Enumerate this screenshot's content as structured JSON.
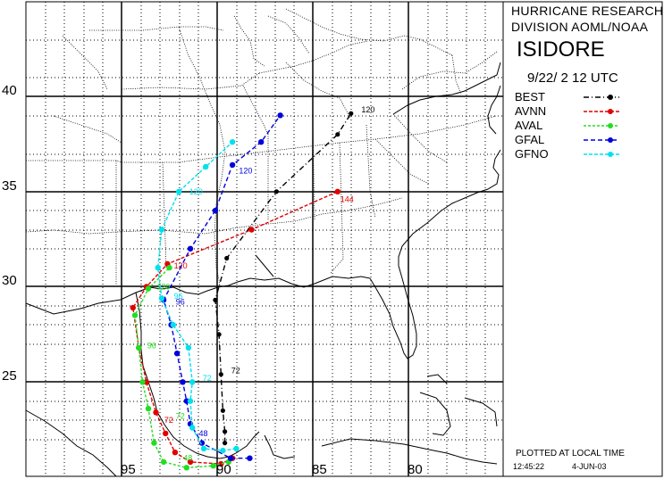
{
  "header": {
    "org_line1": "HURRICANE RESEARCH",
    "org_line2": "DIVISION AOML/NOAA",
    "storm_name": "ISIDORE",
    "datetime": "9/22/ 2 12   UTC"
  },
  "footer": {
    "note": "PLOTTED AT LOCAL TIME",
    "time": "12:45:22",
    "date": "4-JUN-03"
  },
  "axes": {
    "lat_labels": [
      "40",
      "35",
      "30",
      "25"
    ],
    "lon_labels": [
      "95",
      "90",
      "85",
      "80"
    ]
  },
  "legend": [
    {
      "name": "BEST",
      "color": "#000000"
    },
    {
      "name": "AVNN",
      "color": "#e00000"
    },
    {
      "name": "AVAL",
      "color": "#22dd22"
    },
    {
      "name": "GFAL",
      "color": "#0000dd"
    },
    {
      "name": "GFNO",
      "color": "#00e0ee"
    }
  ],
  "tracks": {
    "BEST": {
      "color": "#000000",
      "points": [
        [
          -89.6,
          21.8
        ],
        [
          -89.6,
          22.4
        ],
        [
          -89.7,
          23.5
        ],
        [
          -89.8,
          25.4
        ],
        [
          -89.9,
          27.5
        ],
        [
          -90.1,
          29.3
        ],
        [
          -89.5,
          31.5
        ],
        [
          -86.9,
          35.0
        ],
        [
          -83.7,
          38.0
        ],
        [
          -83.0,
          39.1
        ]
      ],
      "labels": [
        {
          "text": "72",
          "lon": -89.4,
          "lat": 25.6
        },
        {
          "text": "120",
          "lon": -82.6,
          "lat": 39.3
        }
      ]
    },
    "AVNN": {
      "color": "#e00000",
      "points": [
        [
          -89.2,
          21.0
        ],
        [
          -89.8,
          20.7
        ],
        [
          -91.4,
          20.8
        ],
        [
          -92.2,
          21.3
        ],
        [
          -92.7,
          22.3
        ],
        [
          -93.2,
          23.4
        ],
        [
          -93.7,
          25.0
        ],
        [
          -94.1,
          26.8
        ],
        [
          -94.4,
          28.9
        ],
        [
          -93.7,
          30.0
        ],
        [
          -92.6,
          31.2
        ],
        [
          -88.2,
          33.0
        ],
        [
          -83.7,
          35.0
        ]
      ],
      "labels": [
        {
          "text": "72",
          "lon": -92.9,
          "lat": 23.0
        },
        {
          "text": "120",
          "lon": -92.4,
          "lat": 31.1
        },
        {
          "text": "144",
          "lon": -83.7,
          "lat": 34.6
        }
      ]
    },
    "AVAL": {
      "color": "#22dd22",
      "points": [
        [
          -89.4,
          20.8
        ],
        [
          -90.2,
          20.6
        ],
        [
          -91.6,
          20.5
        ],
        [
          -92.8,
          20.8
        ],
        [
          -93.3,
          21.8
        ],
        [
          -93.6,
          23.6
        ],
        [
          -93.9,
          25.0
        ],
        [
          -94.1,
          26.8
        ],
        [
          -94.3,
          28.5
        ],
        [
          -93.6,
          29.9
        ],
        [
          -92.5,
          31.0
        ]
      ],
      "labels": [
        {
          "text": "48",
          "lon": -91.9,
          "lat": 21.0
        },
        {
          "text": "96",
          "lon": -93.8,
          "lat": 26.9
        },
        {
          "text": "72",
          "lon": -92.3,
          "lat": 23.2
        },
        {
          "text": "120",
          "lon": -93.3,
          "lat": 30.0
        }
      ]
    },
    "GFAL": {
      "color": "#0000dd",
      "points": [
        [
          -88.3,
          21.0
        ],
        [
          -89.3,
          21.0
        ],
        [
          -90.8,
          21.8
        ],
        [
          -91.4,
          22.8
        ],
        [
          -91.6,
          24.0
        ],
        [
          -91.8,
          25.0
        ],
        [
          -92.1,
          26.5
        ],
        [
          -92.4,
          28.0
        ],
        [
          -92.8,
          29.3
        ],
        [
          -91.4,
          32.0
        ],
        [
          -90.1,
          34.0
        ],
        [
          -89.2,
          36.4
        ],
        [
          -87.7,
          37.6
        ],
        [
          -86.7,
          39.0
        ]
      ],
      "labels": [
        {
          "text": "48",
          "lon": -91.1,
          "lat": 22.3
        },
        {
          "text": "96",
          "lon": -92.3,
          "lat": 29.2
        },
        {
          "text": "120",
          "lon": -89.0,
          "lat": 36.1
        }
      ]
    },
    "GFNO": {
      "color": "#00e0ee",
      "points": [
        [
          -89.0,
          21.5
        ],
        [
          -89.7,
          21.4
        ],
        [
          -90.7,
          21.5
        ],
        [
          -91.3,
          22.6
        ],
        [
          -91.4,
          24.0
        ],
        [
          -91.3,
          25.0
        ],
        [
          -91.5,
          26.8
        ],
        [
          -92.3,
          28.0
        ],
        [
          -92.9,
          29.4
        ],
        [
          -93.1,
          31.0
        ],
        [
          -92.9,
          33.0
        ],
        [
          -92.0,
          35.0
        ],
        [
          -90.6,
          36.3
        ],
        [
          -89.2,
          37.6
        ]
      ],
      "labels": [
        {
          "text": "72",
          "lon": -90.9,
          "lat": 25.2
        },
        {
          "text": "96",
          "lon": -92.4,
          "lat": 29.5
        },
        {
          "text": "120",
          "lon": -91.6,
          "lat": 35.0
        }
      ]
    }
  }
}
